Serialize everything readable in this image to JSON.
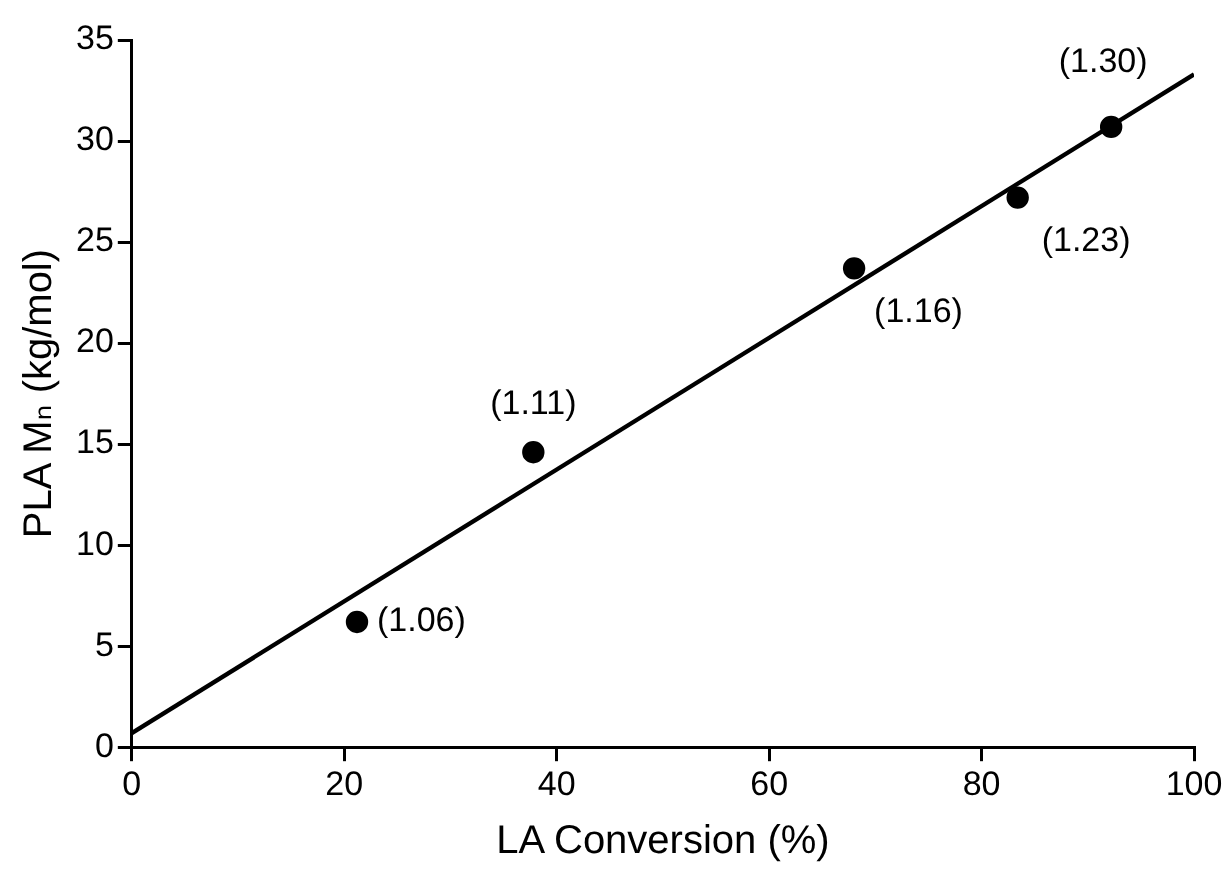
{
  "chart_data": {
    "type": "scatter",
    "xlabel": "LA Conversion (%)",
    "ylabel": "PLA Mₙ (kg/mol)",
    "xlim": [
      0,
      100
    ],
    "xticks": [
      0,
      20,
      40,
      60,
      80,
      100
    ],
    "ylim": [
      0,
      35
    ],
    "yticks": [
      0,
      5,
      10,
      15,
      20,
      25,
      30,
      35
    ],
    "grid": false,
    "legend": false,
    "annotations": [
      {
        "text": "(1.06)",
        "x": 21.2,
        "y": 6.2
      },
      {
        "text": "(1.11)",
        "x": 37.8,
        "y": 14.6
      },
      {
        "text": "(1.16)",
        "x": 68.0,
        "y": 23.7
      },
      {
        "text": "(1.23)",
        "x": 83.4,
        "y": 27.2
      },
      {
        "text": "(1.30)",
        "x": 92.2,
        "y": 30.7
      }
    ],
    "series": [
      {
        "type": "scatter",
        "color": "#000000",
        "marker": "circle",
        "x": [
          21.2,
          37.8,
          68.0,
          83.4,
          92.2
        ],
        "values": [
          6.2,
          14.6,
          23.7,
          27.2,
          30.7
        ]
      },
      {
        "type": "line",
        "color": "#000000",
        "marker": "none",
        "line_style": "solid",
        "x": [
          0,
          100
        ],
        "values": [
          0.7,
          33.3
        ]
      }
    ]
  }
}
